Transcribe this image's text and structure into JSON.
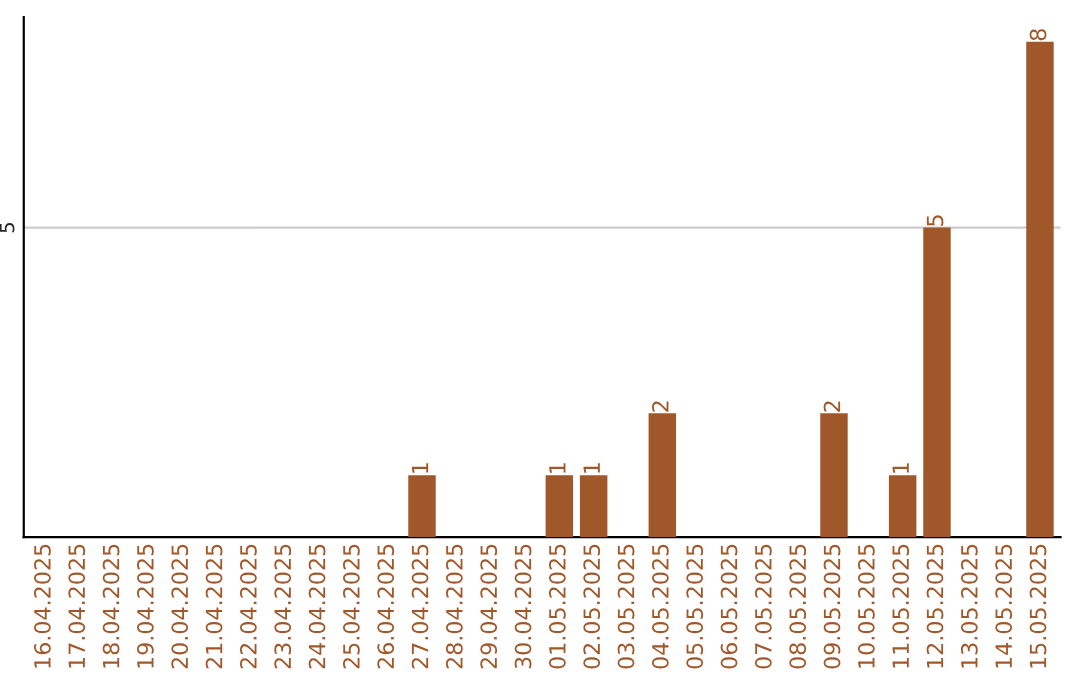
{
  "chart_data": {
    "type": "bar",
    "categories": [
      "16.04.2025",
      "17.04.2025",
      "18.04.2025",
      "19.04.2025",
      "20.04.2025",
      "21.04.2025",
      "22.04.2025",
      "23.04.2025",
      "24.04.2025",
      "25.04.2025",
      "26.04.2025",
      "27.04.2025",
      "28.04.2025",
      "29.04.2025",
      "30.04.2025",
      "01.05.2025",
      "02.05.2025",
      "03.05.2025",
      "04.05.2025",
      "05.05.2025",
      "06.05.2025",
      "07.05.2025",
      "08.05.2025",
      "09.05.2025",
      "10.05.2025",
      "11.05.2025",
      "12.05.2025",
      "13.05.2025",
      "14.05.2025",
      "15.05.2025"
    ],
    "values": [
      0,
      0,
      0,
      0,
      0,
      0,
      0,
      0,
      0,
      0,
      0,
      1,
      0,
      0,
      0,
      1,
      1,
      0,
      2,
      0,
      0,
      0,
      0,
      2,
      0,
      1,
      5,
      0,
      0,
      8
    ],
    "value_labels": [
      null,
      null,
      null,
      null,
      null,
      null,
      null,
      null,
      null,
      null,
      null,
      "1",
      null,
      null,
      null,
      "1",
      "1",
      null,
      "2",
      null,
      null,
      null,
      null,
      "2",
      null,
      "1",
      "5",
      null,
      null,
      "8"
    ],
    "color": "#a0582a",
    "ylim": [
      0,
      8.4
    ],
    "yticks": [
      5
    ],
    "grid": "y"
  }
}
